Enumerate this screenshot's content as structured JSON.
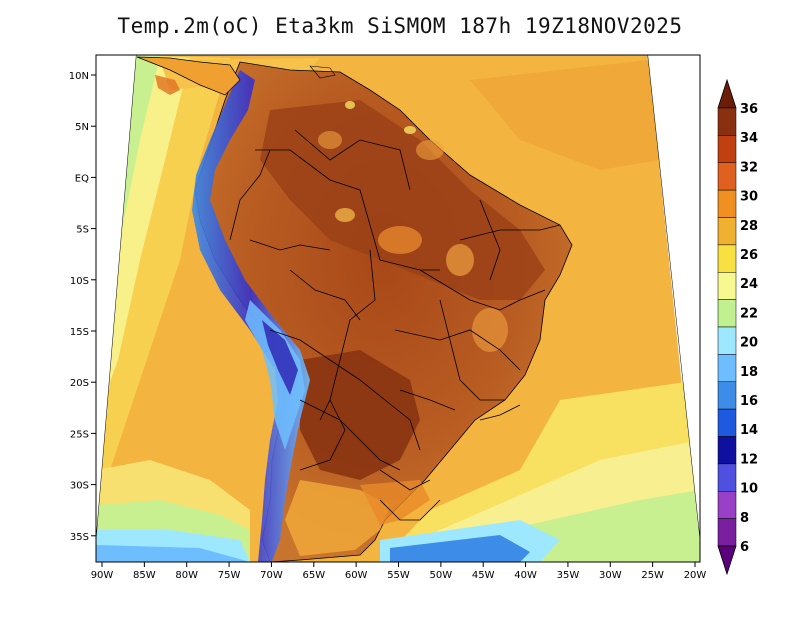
{
  "title": "Temp.2m(oC) Eta3km SiSMOM 187h 19Z18NOV2025",
  "map": {
    "variable": "Temp.2m",
    "units": "oC",
    "lat_labels": [
      "10N",
      "5N",
      "EQ",
      "5S",
      "10S",
      "15S",
      "20S",
      "25S",
      "30S",
      "35S"
    ],
    "lon_labels": [
      "90W",
      "85W",
      "80W",
      "75W",
      "70W",
      "65W",
      "60W",
      "55W",
      "50W",
      "45W",
      "40W",
      "35W",
      "30W",
      "25W",
      "20W"
    ]
  },
  "colorbar": {
    "levels": [
      "6",
      "8",
      "10",
      "12",
      "14",
      "16",
      "18",
      "20",
      "22",
      "24",
      "26",
      "28",
      "30",
      "32",
      "34",
      "36"
    ],
    "colors": [
      "#5a007a",
      "#7a1fa0",
      "#9a3fc8",
      "#5050e0",
      "#1010a0",
      "#1e5ae0",
      "#3c8ce8",
      "#6ebeff",
      "#9ee8ff",
      "#c0f090",
      "#f8f890",
      "#f8e040",
      "#f0b030",
      "#f09020",
      "#e06020",
      "#c04010",
      "#8a3010",
      "#6a1e08"
    ]
  },
  "colors": {
    "ocean_warm": "#f2b240",
    "ocean_mid": "#f8e060",
    "ocean_cool": "#c8f090",
    "land_hot": "#b85420",
    "land_very_hot": "#8a3812",
    "andes_cold": "#3a40c8"
  }
}
